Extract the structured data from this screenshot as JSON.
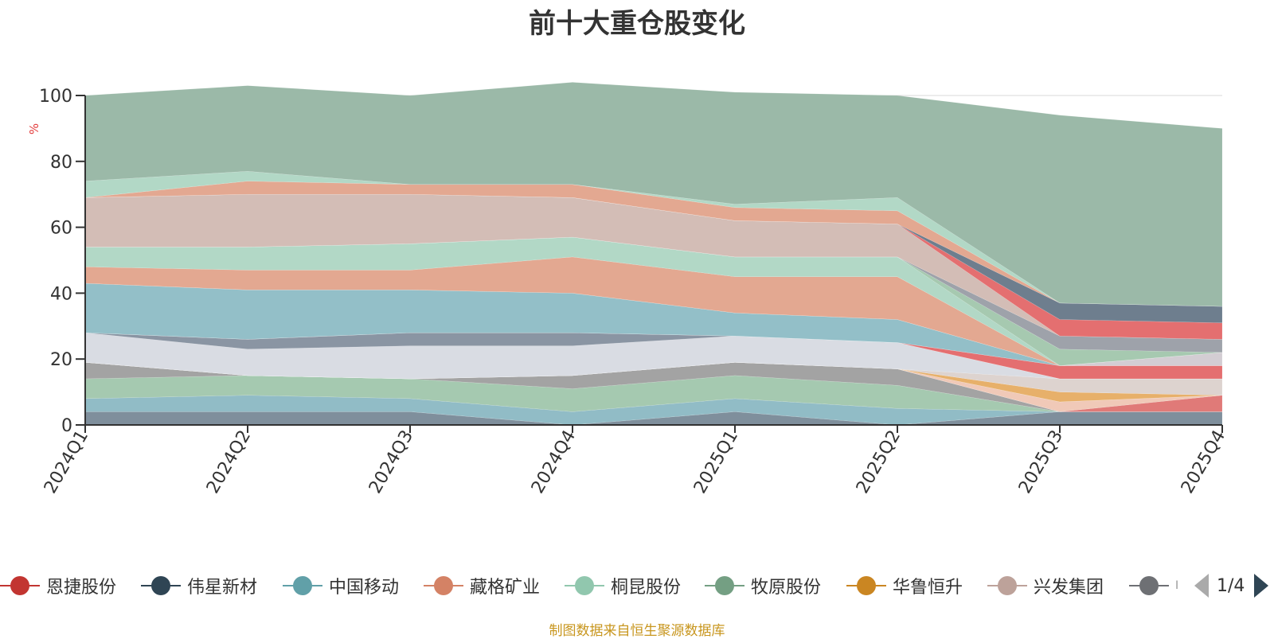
{
  "chart_data": {
    "type": "area",
    "title": "前十大重仓股变化",
    "ylabel": "%",
    "xlabel": "",
    "ylim": [
      0,
      100
    ],
    "yticks": [
      0,
      20,
      40,
      60,
      80,
      100
    ],
    "stacked": true,
    "grid": true,
    "legend_position": "bottom",
    "categories": [
      "2024Q1",
      "2024Q2",
      "2024Q3",
      "2024Q4",
      "2025Q1",
      "2025Q2",
      "2025Q3",
      "2025Q4"
    ],
    "series": [
      {
        "color": "#7f8f9c",
        "values": [
          4,
          4,
          4,
          0,
          4,
          0,
          4,
          4
        ]
      },
      {
        "color": "#91bcc6",
        "values": [
          4,
          5,
          4,
          4,
          4,
          5,
          0,
          0
        ]
      },
      {
        "color": "#a5c9b0",
        "values": [
          6,
          6,
          6,
          7,
          7,
          7,
          0,
          0
        ]
      },
      {
        "color": "#a3a3a3",
        "values": [
          5,
          0,
          0,
          4,
          4,
          5,
          0,
          0
        ]
      },
      {
        "name": "恩捷股份",
        "color": "#e07a78",
        "values": [
          0,
          0,
          0,
          0,
          0,
          0,
          0,
          5
        ]
      },
      {
        "color": "#f0c9b8",
        "values": [
          0,
          0,
          0,
          0,
          0,
          0,
          3,
          0
        ]
      },
      {
        "color": "#b7e0cc",
        "values": [
          0,
          0,
          0,
          0,
          0,
          0,
          0,
          0
        ]
      },
      {
        "name": "华鲁恒升",
        "color": "#e7b06a",
        "values": [
          0,
          0,
          0,
          0,
          0,
          0,
          3,
          0
        ]
      },
      {
        "color": "#ddd3cf",
        "values": [
          0,
          0,
          0,
          0,
          0,
          0,
          4,
          5
        ]
      },
      {
        "color": "#d9dce3",
        "values": [
          9,
          8,
          10,
          9,
          8,
          8,
          0,
          0
        ]
      },
      {
        "name": "伟星新材",
        "color": "#8a95a3",
        "values": [
          0,
          3,
          4,
          4,
          0,
          0,
          0,
          0
        ]
      },
      {
        "color": "#e46f70",
        "values": [
          0,
          0,
          0,
          0,
          0,
          0,
          4,
          4
        ]
      },
      {
        "color": "#e5a8a0",
        "values": [
          0,
          0,
          0,
          0,
          0,
          0,
          0,
          0
        ]
      },
      {
        "name": "中国移动",
        "color": "#93bfc8",
        "values": [
          15,
          15,
          13,
          12,
          7,
          7,
          0,
          0
        ]
      },
      {
        "color": "#d3cdd3",
        "values": [
          0,
          0,
          0,
          0,
          0,
          0,
          0,
          4
        ]
      },
      {
        "name": "藏格矿业",
        "color": "#e3a891",
        "values": [
          5,
          6,
          6,
          11,
          11,
          13,
          0,
          0
        ]
      },
      {
        "name": "桐昆股份",
        "color": "#b2d8c6",
        "values": [
          6,
          7,
          8,
          6,
          6,
          6,
          0,
          0
        ]
      },
      {
        "color": "#a6c9b0",
        "values": [
          0,
          0,
          0,
          0,
          0,
          0,
          5,
          0
        ]
      },
      {
        "color": "#9ea2aa",
        "values": [
          0,
          0,
          0,
          0,
          0,
          0,
          4,
          4
        ]
      },
      {
        "name": "兴发集团",
        "color": "#d3bdb6",
        "values": [
          15,
          16,
          15,
          12,
          11,
          10,
          0,
          0
        ]
      },
      {
        "color": "#e46f70",
        "values": [
          0,
          0,
          0,
          0,
          0,
          0,
          5,
          5
        ]
      },
      {
        "color": "#6e7e8e",
        "values": [
          0,
          0,
          0,
          0,
          0,
          0,
          5,
          5
        ]
      },
      {
        "color": "#e3a891",
        "values": [
          0,
          4,
          3,
          4,
          4,
          4,
          0,
          0
        ]
      },
      {
        "color": "#b2d8c6",
        "values": [
          5,
          3,
          0,
          0,
          1,
          4,
          0,
          0
        ]
      },
      {
        "name": "牧原股份",
        "color": "#9bb9a8",
        "values": [
          26,
          26,
          27,
          31,
          34,
          31,
          57,
          54
        ]
      }
    ]
  },
  "legend": {
    "items": [
      {
        "label": "恩捷股份",
        "color": "#c23531"
      },
      {
        "label": "伟星新材",
        "color": "#2f4554"
      },
      {
        "label": "中国移动",
        "color": "#61a0a8"
      },
      {
        "label": "藏格矿业",
        "color": "#d48265"
      },
      {
        "label": "桐昆股份",
        "color": "#91c7ae"
      },
      {
        "label": "牧原股份",
        "color": "#749f83"
      },
      {
        "label": "华鲁恒升",
        "color": "#ca8622"
      },
      {
        "label": "兴发集团",
        "color": "#bda29a"
      },
      {
        "label": "",
        "color": "#6e7074"
      }
    ],
    "page": "1/4",
    "truncated_label": "I"
  },
  "source_note": "制图数据来自恒生聚源数据库"
}
